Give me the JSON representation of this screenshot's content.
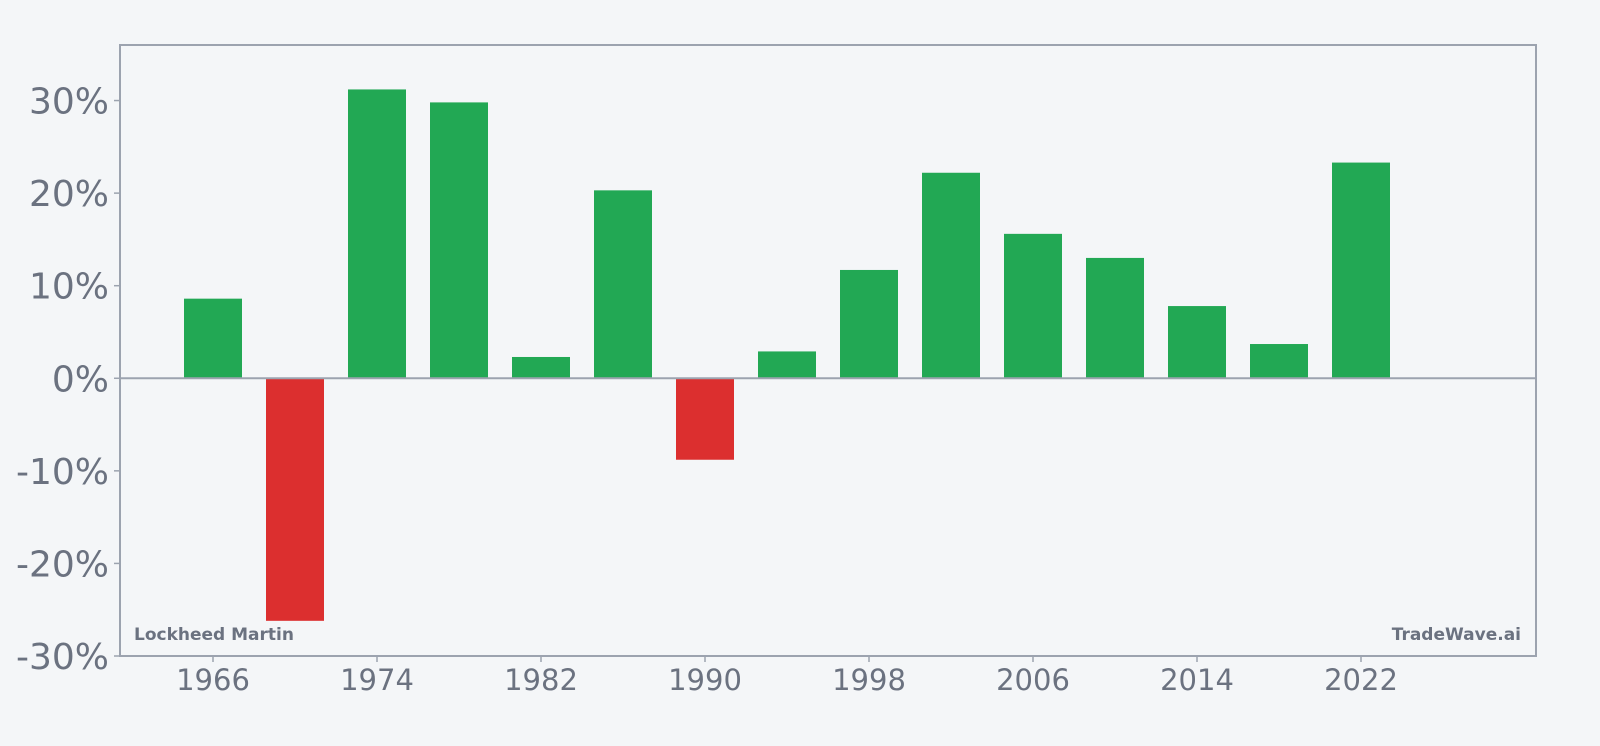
{
  "colors": {
    "background": "#f4f6f8",
    "positive": "#22a854",
    "negative": "#dc2f2f",
    "axis": "#9ca3af",
    "text": "#6b7280"
  },
  "chart_data": {
    "type": "bar",
    "categories": [
      "1966",
      "1970",
      "1974",
      "1978",
      "1982",
      "1986",
      "1990",
      "1994",
      "1998",
      "2002",
      "2006",
      "2010",
      "2014",
      "2018",
      "2022"
    ],
    "values": [
      8.6,
      -26.2,
      31.2,
      29.8,
      2.3,
      20.3,
      -8.8,
      2.9,
      11.7,
      22.2,
      15.6,
      13.0,
      7.8,
      3.7,
      23.3
    ],
    "x_ticks": [
      "1966",
      "1974",
      "1982",
      "1990",
      "1998",
      "2006",
      "2014",
      "2022"
    ],
    "y_ticks": [
      "30%",
      "20%",
      "10%",
      "0%",
      "-10%",
      "-20%",
      "-30%"
    ],
    "y_tick_values": [
      30,
      20,
      10,
      0,
      -10,
      -20,
      -30
    ],
    "ylim": [
      -30,
      36
    ],
    "grid": false,
    "zero_line": true,
    "title": "",
    "xlabel": "",
    "ylabel": ""
  },
  "watermarks": {
    "left": "Lockheed Martin",
    "right": "TradeWave.ai"
  }
}
